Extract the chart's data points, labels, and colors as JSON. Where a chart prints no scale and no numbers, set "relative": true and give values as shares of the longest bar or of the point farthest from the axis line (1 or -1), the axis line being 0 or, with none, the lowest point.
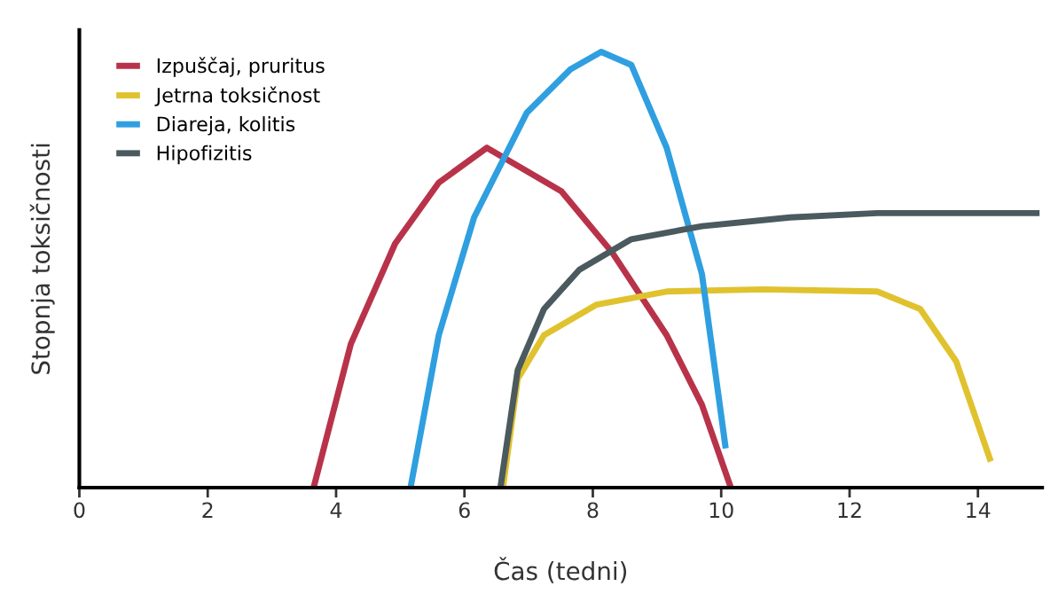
{
  "chart_data": {
    "type": "line",
    "relative": true,
    "xlabel": "Čas (tedni)",
    "ylabel": "Stopnja toksičnosti",
    "xlim": [
      0,
      15
    ],
    "xticks": [
      0,
      2,
      4,
      6,
      8,
      10,
      12,
      14
    ],
    "legend": "top left",
    "grid": false,
    "tick_labels": "x",
    "series": [
      {
        "name": "Izpuščaj, pruritus",
        "color": "#b8334a",
        "x": [
          3.65,
          4.23,
          4.92,
          5.6,
          6.35,
          7.51,
          8.3,
          9.15,
          9.7,
          10.15
        ],
        "values": [
          0,
          0.33,
          0.56,
          0.7,
          0.78,
          0.68,
          0.54,
          0.35,
          0.19,
          0
        ]
      },
      {
        "name": "Jetrna toksičnost",
        "color": "#e0c22e",
        "x": [
          6.6,
          6.83,
          7.24,
          8.06,
          9.15,
          10.65,
          12.43,
          13.1,
          13.66,
          14.2
        ],
        "values": [
          0,
          0.25,
          0.35,
          0.42,
          0.45,
          0.455,
          0.45,
          0.41,
          0.29,
          0.06
        ]
      },
      {
        "name": "Diareja, kolitis",
        "color": "#2f9fe0",
        "x": [
          5.16,
          5.6,
          6.15,
          6.97,
          7.65,
          8.13,
          8.6,
          9.15,
          9.7,
          10.07
        ],
        "values": [
          0,
          0.35,
          0.62,
          0.86,
          0.96,
          1.0,
          0.97,
          0.78,
          0.49,
          0.09
        ]
      },
      {
        "name": "Hipofizitis",
        "color": "#4a5a5e",
        "x": [
          6.56,
          6.83,
          7.24,
          7.79,
          8.6,
          9.7,
          11.07,
          12.43,
          14.96
        ],
        "values": [
          0,
          0.27,
          0.41,
          0.5,
          0.57,
          0.6,
          0.62,
          0.63,
          0.63
        ]
      }
    ]
  }
}
